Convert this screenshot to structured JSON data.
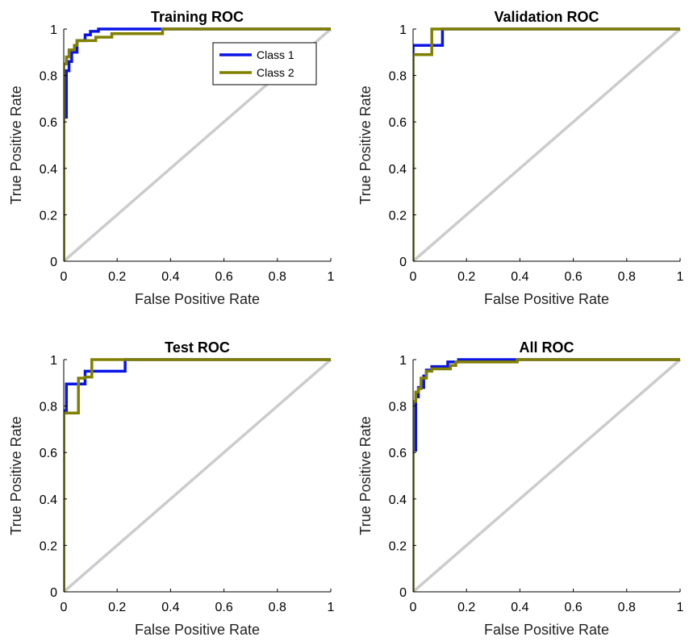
{
  "colors": {
    "class1": "#0a14e6",
    "class2": "#808000",
    "diagonal": "#cccccc",
    "axis": "#000000"
  },
  "chart_data": [
    {
      "type": "line",
      "title": "Training ROC",
      "xlabel": "False Positive Rate",
      "ylabel": "True Positive Rate",
      "xlim": [
        0,
        1
      ],
      "ylim": [
        0,
        1
      ],
      "xticks": [
        "0",
        "0.2",
        "0.4",
        "0.6",
        "0.8",
        "1"
      ],
      "yticks": [
        "0",
        "0.2",
        "0.4",
        "0.6",
        "0.8",
        "1"
      ],
      "legend": {
        "position": "top-right",
        "entries": [
          "Class 1",
          "Class 2"
        ]
      },
      "grid": false,
      "series": [
        {
          "name": "Class 1",
          "color": "#0a14e6",
          "x": [
            0,
            0,
            0.01,
            0.01,
            0.02,
            0.02,
            0.03,
            0.03,
            0.05,
            0.05,
            0.08,
            0.08,
            0.1,
            0.1,
            0.13,
            0.13,
            1
          ],
          "y": [
            0,
            0.62,
            0.62,
            0.82,
            0.82,
            0.86,
            0.86,
            0.9,
            0.9,
            0.95,
            0.95,
            0.975,
            0.975,
            0.99,
            0.99,
            1,
            1
          ]
        },
        {
          "name": "Class 2",
          "color": "#808000",
          "x": [
            0,
            0,
            0.01,
            0.01,
            0.02,
            0.02,
            0.04,
            0.04,
            0.05,
            0.05,
            0.12,
            0.12,
            0.18,
            0.18,
            0.37,
            0.37,
            1
          ],
          "y": [
            0,
            0.85,
            0.85,
            0.88,
            0.88,
            0.91,
            0.91,
            0.93,
            0.93,
            0.95,
            0.95,
            0.965,
            0.965,
            0.98,
            0.98,
            1,
            1
          ]
        },
        {
          "name": "",
          "color": "#cccccc",
          "x": [
            0,
            1
          ],
          "y": [
            0,
            1
          ]
        }
      ]
    },
    {
      "type": "line",
      "title": "Validation ROC",
      "xlabel": "False Positive Rate",
      "ylabel": "True Positive Rate",
      "xlim": [
        0,
        1
      ],
      "ylim": [
        0,
        1
      ],
      "xticks": [
        "0",
        "0.2",
        "0.4",
        "0.6",
        "0.8",
        "1"
      ],
      "yticks": [
        "0",
        "0.2",
        "0.4",
        "0.6",
        "0.8",
        "1"
      ],
      "grid": false,
      "series": [
        {
          "name": "Class 1",
          "color": "#0a14e6",
          "x": [
            0,
            0,
            0.11,
            0.11,
            1
          ],
          "y": [
            0,
            0.93,
            0.93,
            1,
            1
          ]
        },
        {
          "name": "Class 2",
          "color": "#808000",
          "x": [
            0,
            0,
            0.07,
            0.07,
            1
          ],
          "y": [
            0,
            0.89,
            0.89,
            1,
            1
          ]
        },
        {
          "name": "",
          "color": "#cccccc",
          "x": [
            0,
            1
          ],
          "y": [
            0,
            1
          ]
        }
      ]
    },
    {
      "type": "line",
      "title": "Test ROC",
      "xlabel": "False Positive Rate",
      "ylabel": "True Positive Rate",
      "xlim": [
        0,
        1
      ],
      "ylim": [
        0,
        1
      ],
      "xticks": [
        "0",
        "0.2",
        "0.4",
        "0.6",
        "0.8",
        "1"
      ],
      "yticks": [
        "0",
        "0.2",
        "0.4",
        "0.6",
        "0.8",
        "1"
      ],
      "grid": false,
      "series": [
        {
          "name": "Class 1",
          "color": "#0a14e6",
          "x": [
            0,
            0,
            0.01,
            0.01,
            0.08,
            0.08,
            0.23,
            0.23,
            1
          ],
          "y": [
            0,
            0.78,
            0.78,
            0.895,
            0.895,
            0.95,
            0.95,
            1,
            1
          ]
        },
        {
          "name": "Class 2",
          "color": "#808000",
          "x": [
            0,
            0,
            0.055,
            0.055,
            0.08,
            0.08,
            0.105,
            0.105,
            1
          ],
          "y": [
            0,
            0.77,
            0.77,
            0.92,
            0.92,
            0.925,
            0.925,
            1,
            1
          ]
        },
        {
          "name": "",
          "color": "#cccccc",
          "x": [
            0,
            1
          ],
          "y": [
            0,
            1
          ]
        }
      ]
    },
    {
      "type": "line",
      "title": "All ROC",
      "xlabel": "False Positive Rate",
      "ylabel": "True Positive Rate",
      "xlim": [
        0,
        1
      ],
      "ylim": [
        0,
        1
      ],
      "xticks": [
        "0",
        "0.2",
        "0.4",
        "0.6",
        "0.8",
        "1"
      ],
      "yticks": [
        "0",
        "0.2",
        "0.4",
        "0.6",
        "0.8",
        "1"
      ],
      "grid": false,
      "series": [
        {
          "name": "Class 1",
          "color": "#0a14e6",
          "x": [
            0,
            0,
            0.01,
            0.01,
            0.02,
            0.02,
            0.04,
            0.04,
            0.05,
            0.05,
            0.07,
            0.07,
            0.13,
            0.13,
            0.17,
            0.17,
            1
          ],
          "y": [
            0,
            0.61,
            0.61,
            0.84,
            0.84,
            0.88,
            0.88,
            0.93,
            0.93,
            0.955,
            0.955,
            0.97,
            0.97,
            0.99,
            0.99,
            1,
            1
          ]
        },
        {
          "name": "Class 2",
          "color": "#808000",
          "x": [
            0,
            0,
            0.01,
            0.01,
            0.02,
            0.02,
            0.03,
            0.03,
            0.05,
            0.05,
            0.07,
            0.07,
            0.14,
            0.14,
            0.16,
            0.16,
            0.39,
            0.39,
            1
          ],
          "y": [
            0,
            0.82,
            0.82,
            0.86,
            0.86,
            0.875,
            0.875,
            0.92,
            0.92,
            0.95,
            0.95,
            0.96,
            0.96,
            0.975,
            0.975,
            0.99,
            0.99,
            1,
            1
          ]
        },
        {
          "name": "",
          "color": "#cccccc",
          "x": [
            0,
            1
          ],
          "y": [
            0,
            1
          ]
        }
      ]
    }
  ]
}
